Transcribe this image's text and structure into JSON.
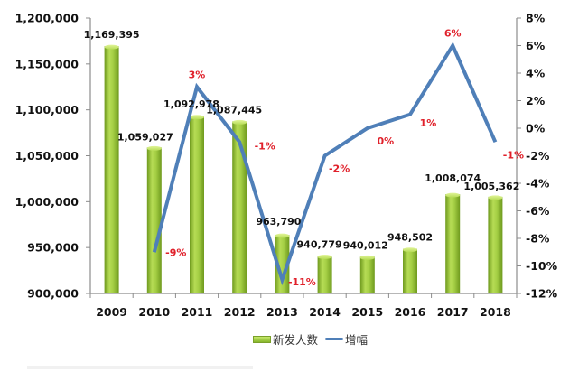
{
  "chart_data": {
    "type": "bar+line",
    "title": "",
    "categories": [
      "2009",
      "2010",
      "2011",
      "2012",
      "2013",
      "2014",
      "2015",
      "2016",
      "2017",
      "2018"
    ],
    "series": [
      {
        "name": "新发人数",
        "type": "bar",
        "axis": "left",
        "color": "#8dbb2f",
        "values": [
          1169395,
          1059027,
          1092978,
          1087445,
          963790,
          940779,
          940012,
          948502,
          1008074,
          1005362
        ],
        "labels": [
          "1,169,395",
          "1,059,027",
          "1,092,978",
          "1,087,445",
          "963,790",
          "940,779",
          "940,012",
          "948,502",
          "1,008,074",
          "1,005,362"
        ]
      },
      {
        "name": "增幅",
        "type": "line",
        "axis": "right",
        "color": "#4f7fb8",
        "values": [
          null,
          -9,
          3,
          -1,
          -11,
          -2,
          0,
          1,
          6,
          -1
        ],
        "labels": [
          "",
          "-9%",
          "3%",
          "-1%",
          "-11%",
          "-2%",
          "0%",
          "1%",
          "6%",
          "-1%"
        ]
      }
    ],
    "y_left": {
      "range": [
        900000,
        1200000
      ],
      "ticks": [
        "900,000",
        "950,000",
        "1,000,000",
        "1,050,000",
        "1,100,000",
        "1,150,000",
        "1,200,000"
      ]
    },
    "y_right": {
      "range": [
        -12,
        8
      ],
      "ticks": [
        "-12%",
        "-10%",
        "-8%",
        "-6%",
        "-4%",
        "-2%",
        "0%",
        "2%",
        "4%",
        "6%",
        "8%"
      ]
    },
    "xlabel": "",
    "ylabel": "",
    "grid": false,
    "legend_position": "bottom",
    "label_color": "#e0202a"
  },
  "legend": {
    "bar_label": "新发人数",
    "line_label": "增幅"
  }
}
